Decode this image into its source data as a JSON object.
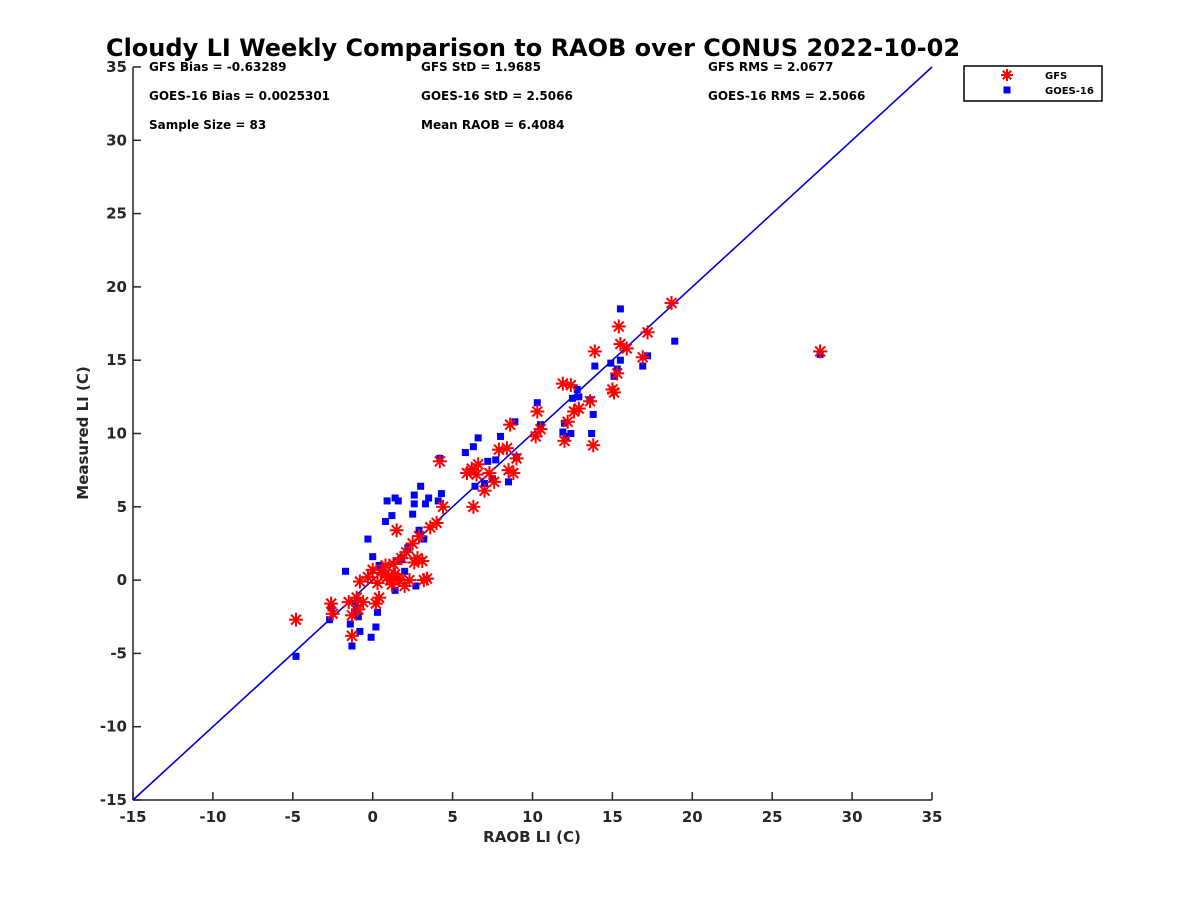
{
  "chart_data": {
    "type": "scatter",
    "title": "Cloudy LI Weekly Comparison to RAOB over CONUS 2022-10-02",
    "xlabel": "RAOB LI (C)",
    "ylabel": "Measured LI (C)",
    "xlim": [
      -15,
      35
    ],
    "ylim": [
      -15,
      35
    ],
    "xticks": [
      -15,
      -10,
      -5,
      0,
      5,
      10,
      15,
      20,
      25,
      30,
      35
    ],
    "yticks": [
      -15,
      -10,
      -5,
      0,
      5,
      10,
      15,
      20,
      25,
      30,
      35
    ],
    "reference_line": {
      "from": [
        -15,
        -15
      ],
      "to": [
        35,
        35
      ],
      "color": "#0000dd"
    },
    "stats": [
      [
        "GFS Bias = -0.63289",
        "GFS StD = 1.9685",
        "GFS RMS = 2.0677"
      ],
      [
        "GOES-16 Bias = 0.0025301",
        "GOES-16 StD = 2.5066",
        "GOES-16 RMS = 2.5066"
      ],
      [
        "Sample Size = 83",
        "Mean RAOB = 6.4084"
      ]
    ],
    "legend_position": "outside-top-right",
    "series": [
      {
        "name": "GFS",
        "marker": "asterisk",
        "color": "#ff0000",
        "points": [
          [
            -4.8,
            -2.7
          ],
          [
            -2.6,
            -1.6
          ],
          [
            -2.5,
            -2.3
          ],
          [
            -1.5,
            -1.5
          ],
          [
            -1.3,
            -2.4
          ],
          [
            -1.3,
            -3.8
          ],
          [
            -1.0,
            -1.2
          ],
          [
            -0.9,
            -2.0
          ],
          [
            -0.8,
            -0.1
          ],
          [
            -0.6,
            -1.5
          ],
          [
            -0.3,
            0.2
          ],
          [
            0.0,
            0.7
          ],
          [
            0.2,
            -1.6
          ],
          [
            0.3,
            -0.2
          ],
          [
            0.4,
            -1.2
          ],
          [
            0.5,
            0.5
          ],
          [
            0.8,
            1.0
          ],
          [
            0.9,
            0.2
          ],
          [
            1.0,
            0.3
          ],
          [
            1.1,
            0.0
          ],
          [
            1.2,
            -0.3
          ],
          [
            1.3,
            1.1
          ],
          [
            1.4,
            0.4
          ],
          [
            1.5,
            3.4
          ],
          [
            1.6,
            0.1
          ],
          [
            1.7,
            0.0
          ],
          [
            1.8,
            1.5
          ],
          [
            2.0,
            -0.4
          ],
          [
            2.1,
            1.9
          ],
          [
            2.3,
            0.0
          ],
          [
            2.5,
            2.5
          ],
          [
            2.6,
            1.2
          ],
          [
            2.8,
            1.5
          ],
          [
            2.9,
            3.0
          ],
          [
            3.1,
            1.3
          ],
          [
            3.2,
            0.0
          ],
          [
            3.4,
            0.1
          ],
          [
            3.6,
            3.6
          ],
          [
            4.0,
            3.9
          ],
          [
            4.2,
            8.1
          ],
          [
            4.4,
            5.0
          ],
          [
            5.9,
            7.3
          ],
          [
            6.2,
            7.6
          ],
          [
            6.3,
            5.0
          ],
          [
            6.5,
            7.2
          ],
          [
            6.6,
            7.9
          ],
          [
            7.0,
            6.1
          ],
          [
            7.3,
            7.3
          ],
          [
            7.6,
            6.7
          ],
          [
            7.9,
            8.9
          ],
          [
            8.4,
            9.0
          ],
          [
            8.5,
            7.5
          ],
          [
            8.6,
            10.6
          ],
          [
            8.8,
            7.3
          ],
          [
            9.0,
            8.3
          ],
          [
            10.2,
            9.8
          ],
          [
            10.3,
            11.5
          ],
          [
            10.5,
            10.3
          ],
          [
            11.9,
            13.4
          ],
          [
            12.0,
            9.5
          ],
          [
            12.2,
            10.8
          ],
          [
            12.4,
            13.3
          ],
          [
            12.6,
            11.5
          ],
          [
            12.9,
            11.7
          ],
          [
            13.8,
            9.2
          ],
          [
            13.9,
            15.6
          ],
          [
            13.6,
            12.2
          ],
          [
            15.0,
            13.0
          ],
          [
            15.1,
            12.8
          ],
          [
            15.3,
            14.1
          ],
          [
            15.4,
            17.3
          ],
          [
            15.5,
            16.1
          ],
          [
            15.9,
            15.8
          ],
          [
            16.9,
            15.2
          ],
          [
            17.2,
            16.9
          ],
          [
            18.7,
            18.9
          ],
          [
            28.0,
            15.6
          ]
        ]
      },
      {
        "name": "GOES-16",
        "marker": "square",
        "color": "#0000ff",
        "points": [
          [
            -4.8,
            -5.2
          ],
          [
            -2.7,
            -2.7
          ],
          [
            -2.6,
            -1.9
          ],
          [
            -1.7,
            0.6
          ],
          [
            -1.4,
            -3.0
          ],
          [
            -1.3,
            -4.5
          ],
          [
            -1.1,
            -1.6
          ],
          [
            -1.0,
            -2.0
          ],
          [
            -0.9,
            -2.5
          ],
          [
            -0.8,
            -3.5
          ],
          [
            -0.3,
            2.8
          ],
          [
            -0.1,
            -3.9
          ],
          [
            0.0,
            1.6
          ],
          [
            0.2,
            -3.2
          ],
          [
            0.3,
            -2.2
          ],
          [
            0.4,
            1.0
          ],
          [
            0.7,
            0.5
          ],
          [
            0.8,
            4.0
          ],
          [
            0.9,
            5.4
          ],
          [
            1.2,
            4.4
          ],
          [
            1.4,
            -0.7
          ],
          [
            1.4,
            5.6
          ],
          [
            1.6,
            5.4
          ],
          [
            1.8,
            1.4
          ],
          [
            2.0,
            0.6
          ],
          [
            2.2,
            2.2
          ],
          [
            2.5,
            4.5
          ],
          [
            2.6,
            5.2
          ],
          [
            2.6,
            5.8
          ],
          [
            2.7,
            -0.4
          ],
          [
            2.9,
            3.4
          ],
          [
            3.0,
            6.4
          ],
          [
            3.2,
            2.8
          ],
          [
            3.3,
            5.2
          ],
          [
            3.5,
            5.6
          ],
          [
            4.1,
            5.4
          ],
          [
            4.3,
            5.9
          ],
          [
            4.2,
            8.3
          ],
          [
            5.8,
            8.7
          ],
          [
            6.2,
            7.4
          ],
          [
            6.3,
            9.1
          ],
          [
            6.4,
            6.4
          ],
          [
            6.6,
            9.7
          ],
          [
            7.0,
            6.6
          ],
          [
            7.2,
            8.1
          ],
          [
            7.5,
            6.9
          ],
          [
            7.7,
            8.2
          ],
          [
            8.0,
            9.8
          ],
          [
            8.5,
            6.7
          ],
          [
            8.9,
            10.8
          ],
          [
            9.0,
            8.4
          ],
          [
            10.3,
            12.1
          ],
          [
            10.5,
            10.6
          ],
          [
            11.9,
            10.1
          ],
          [
            12.0,
            10.7
          ],
          [
            12.1,
            9.8
          ],
          [
            12.4,
            10.0
          ],
          [
            12.5,
            12.4
          ],
          [
            12.8,
            13.0
          ],
          [
            12.9,
            12.5
          ],
          [
            13.6,
            12.3
          ],
          [
            13.7,
            10.0
          ],
          [
            13.8,
            11.3
          ],
          [
            13.9,
            14.6
          ],
          [
            14.9,
            14.8
          ],
          [
            15.1,
            13.9
          ],
          [
            15.3,
            14.4
          ],
          [
            15.5,
            15.0
          ],
          [
            15.5,
            18.5
          ],
          [
            16.9,
            14.6
          ],
          [
            17.2,
            15.3
          ],
          [
            18.9,
            16.3
          ],
          [
            28.0,
            15.4
          ]
        ]
      }
    ]
  }
}
